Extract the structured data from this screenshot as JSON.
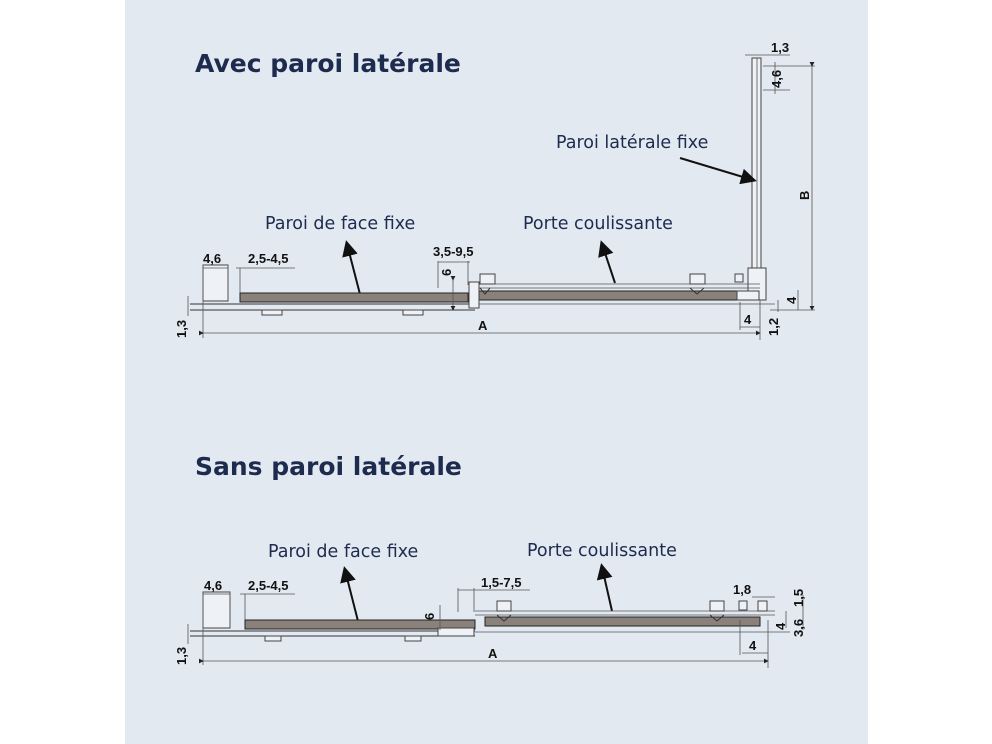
{
  "colors": {
    "background": "#e3e9f1",
    "title": "#1d2b4e",
    "glass": "#8a817b"
  },
  "top": {
    "title": "Avec paroi latérale",
    "labels": {
      "side_wall": "Paroi latérale fixe",
      "fixed_panel": "Paroi de face fixe",
      "sliding_door": "Porte coulissante"
    },
    "dims": {
      "side_top_w": "1,3",
      "side_top_h": "4,6",
      "height": "B",
      "left_w": "4,6",
      "gap": "2,5-4,5",
      "overlap": "3,5-9,5",
      "overlap_h": "6",
      "bottom_h": "1,3",
      "width": "A",
      "right_h": "4",
      "right_w": "4",
      "right_offset": "1,2"
    }
  },
  "bottom": {
    "title": "Sans paroi latérale",
    "labels": {
      "fixed_panel": "Paroi de face fixe",
      "sliding_door": "Porte coulissante"
    },
    "dims": {
      "left_w": "4,6",
      "gap": "2,5-4,5",
      "overlap": "1,5-7,5",
      "overlap_h": "6",
      "bottom_h": "1,3",
      "width": "A",
      "right_w_top": "1,8",
      "right_h_top": "1,5",
      "right_h": "4",
      "right_h2": "3,6",
      "right_w": "4"
    }
  }
}
